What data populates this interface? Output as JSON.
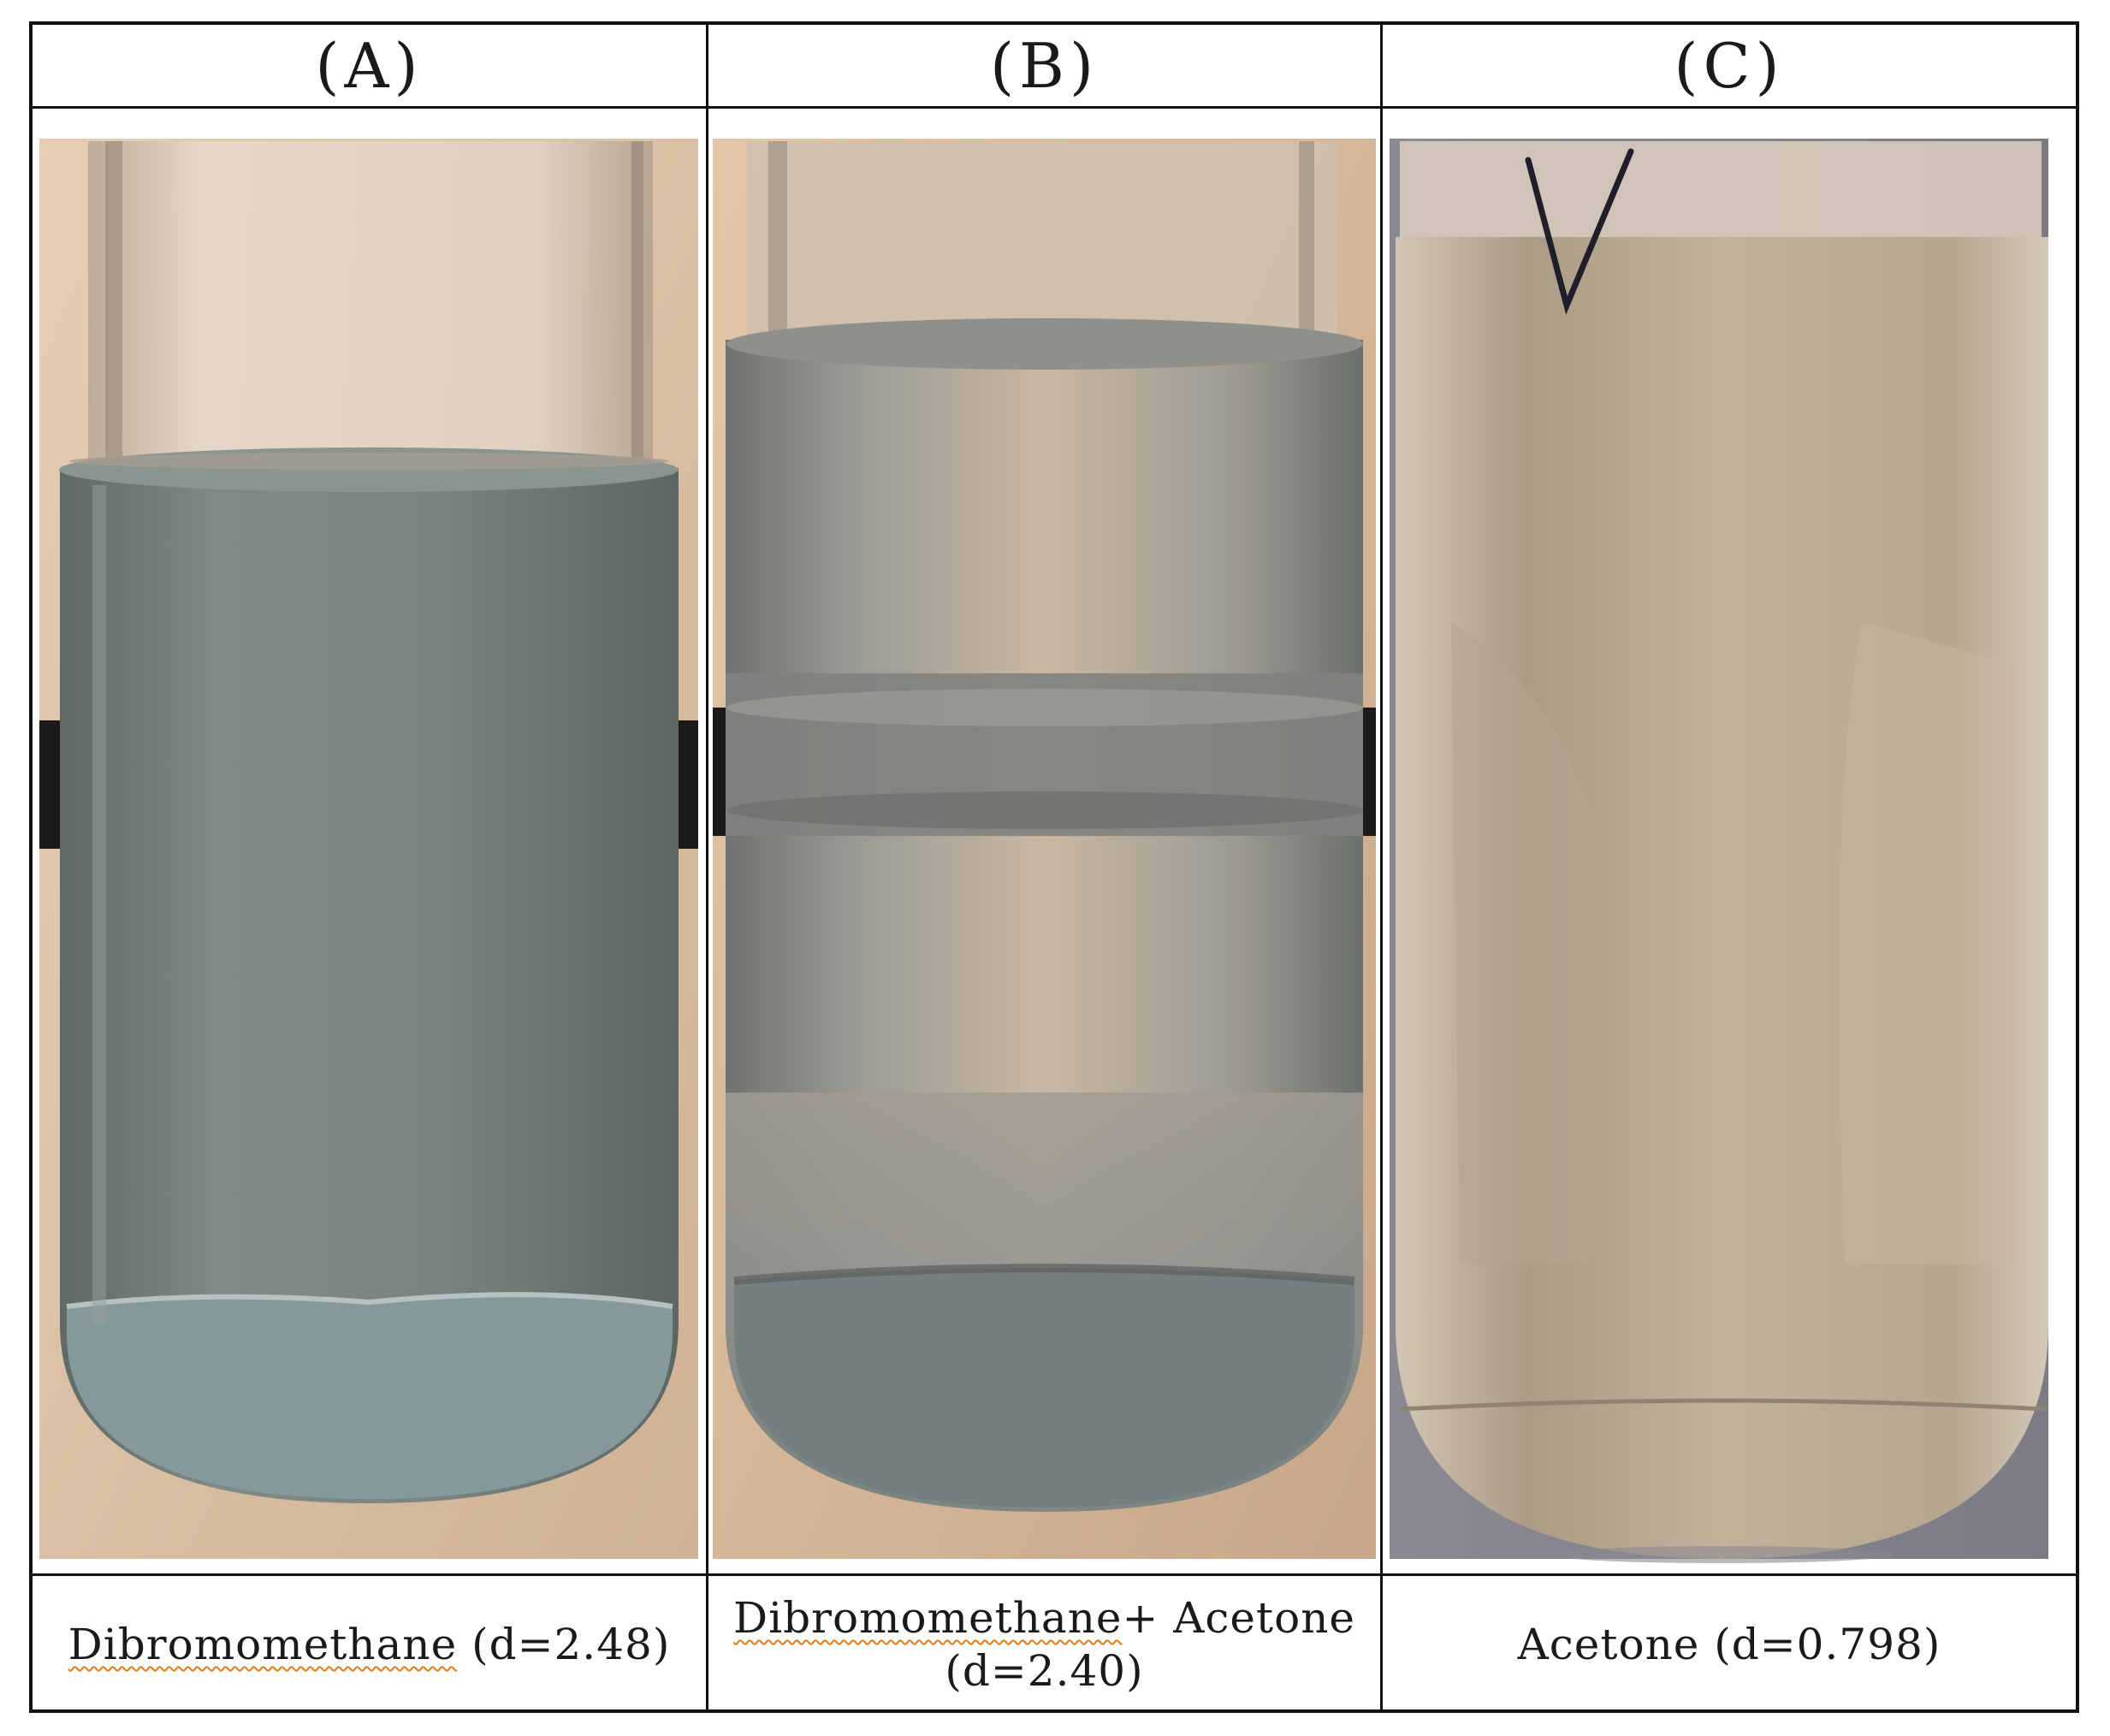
{
  "panels": [
    {
      "label": "(A)",
      "caption_main": "Dibromomethane",
      "caption_rest": " (d=2.48)",
      "colors": {
        "background": "#dcc2a8",
        "liquid": "#7a8582",
        "sediment": "#86999a",
        "glass": "#c9b9aa"
      }
    },
    {
      "label": "(B)",
      "caption_main": "Dibromomethane",
      "caption_rest": "+ Acetone",
      "caption_line2": "(d=2.40)",
      "colors": {
        "background": "#d6b99c",
        "liquid": "#8a8d88",
        "sediment": "#74807f",
        "glass": "#d3c2b0"
      }
    },
    {
      "label": "(C)",
      "caption_main": "Acetone",
      "caption_rest": " (d=0.798)",
      "colors": {
        "background": "#8b8890",
        "liquid": "#bfae97",
        "sediment": "#b5a58e",
        "glass": "#d8cbbd"
      }
    }
  ]
}
